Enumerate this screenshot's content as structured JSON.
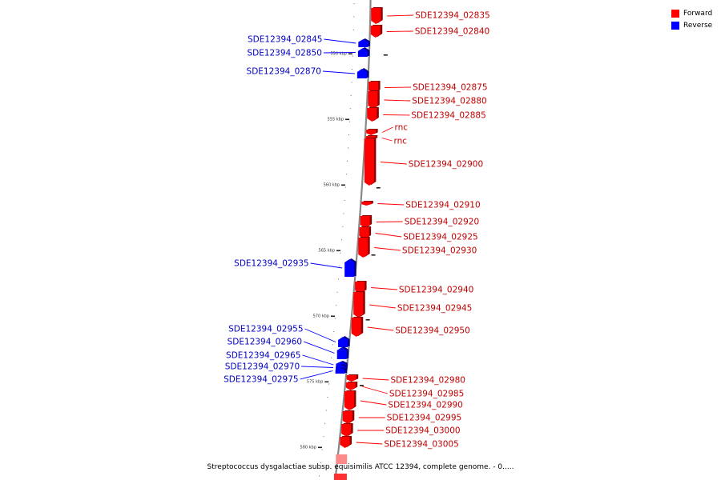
{
  "caption": "Streptococcus dysgalactiae subsp. equisimilis ATCC 12394, complete genome. - 0.....",
  "legend": [
    {
      "label": "Forward",
      "color": "#ff0000"
    },
    {
      "label": "Reverse",
      "color": "#0000ff"
    }
  ],
  "colors": {
    "forward": "#ff0000",
    "reverse": "#0000ff",
    "backbone": "#888888"
  },
  "scale_labels": [
    "550 kbp",
    "555 kbp",
    "560 kbp",
    "565 kbp",
    "570 kbp",
    "575 kbp",
    "580 kbp"
  ],
  "genes": [
    {
      "name": "SDE12394_02835",
      "strand": "forward"
    },
    {
      "name": "SDE12394_02840",
      "strand": "forward"
    },
    {
      "name": "SDE12394_02845",
      "strand": "reverse"
    },
    {
      "name": "SDE12394_02850",
      "strand": "reverse"
    },
    {
      "name": "SDE12394_02870",
      "strand": "reverse"
    },
    {
      "name": "SDE12394_02875",
      "strand": "forward"
    },
    {
      "name": "SDE12394_02880",
      "strand": "forward"
    },
    {
      "name": "SDE12394_02885",
      "strand": "forward"
    },
    {
      "name": "rnc",
      "strand": "forward"
    },
    {
      "name": "rnc",
      "strand": "forward"
    },
    {
      "name": "SDE12394_02900",
      "strand": "forward"
    },
    {
      "name": "SDE12394_02910",
      "strand": "forward"
    },
    {
      "name": "SDE12394_02920",
      "strand": "forward"
    },
    {
      "name": "SDE12394_02925",
      "strand": "forward"
    },
    {
      "name": "SDE12394_02930",
      "strand": "forward"
    },
    {
      "name": "SDE12394_02935",
      "strand": "reverse"
    },
    {
      "name": "SDE12394_02940",
      "strand": "forward"
    },
    {
      "name": "SDE12394_02945",
      "strand": "forward"
    },
    {
      "name": "SDE12394_02950",
      "strand": "forward"
    },
    {
      "name": "SDE12394_02955",
      "strand": "reverse"
    },
    {
      "name": "SDE12394_02960",
      "strand": "reverse"
    },
    {
      "name": "SDE12394_02965",
      "strand": "reverse"
    },
    {
      "name": "SDE12394_02970",
      "strand": "reverse"
    },
    {
      "name": "SDE12394_02975",
      "strand": "reverse"
    },
    {
      "name": "SDE12394_02980",
      "strand": "forward"
    },
    {
      "name": "SDE12394_02985",
      "strand": "forward"
    },
    {
      "name": "SDE12394_02990",
      "strand": "forward"
    },
    {
      "name": "SDE12394_02995",
      "strand": "forward"
    },
    {
      "name": "SDE12394_03000",
      "strand": "forward"
    },
    {
      "name": "SDE12394_03005",
      "strand": "forward"
    }
  ]
}
